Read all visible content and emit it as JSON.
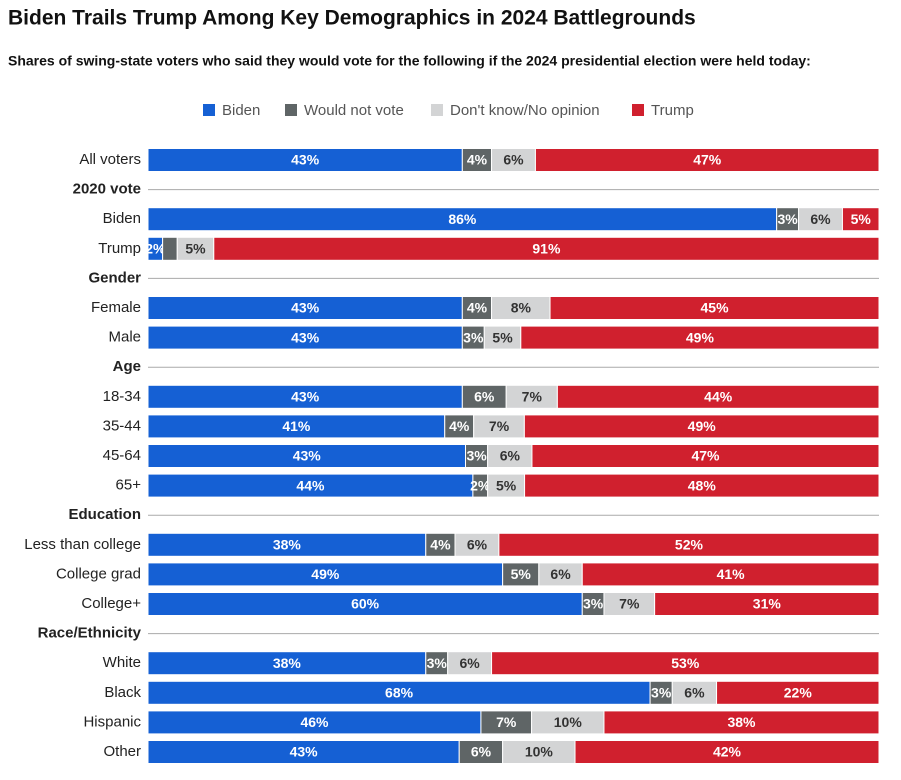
{
  "chart_data": {
    "type": "stacked-bar",
    "title": "Biden Trails Trump Among Key Demographics in 2024 Battlegrounds",
    "subtitle": "Shares of swing-state voters who said they would vote for the following if the 2024 presidential election were held today:",
    "categories": [
      "All voters",
      "2020 vote",
      "Biden",
      "Trump",
      "Gender",
      "Female",
      "Male",
      "Age",
      "18-34",
      "35-44",
      "45-64",
      "65+",
      "Education",
      "Less than college",
      "College grad",
      "College+",
      "Race/Ethnicity",
      "White",
      "Black",
      "Hispanic",
      "Other"
    ],
    "series": [
      {
        "name": "Biden",
        "color": "#1560d4",
        "values": [
          43,
          null,
          86,
          2,
          null,
          43,
          43,
          null,
          43,
          41,
          43,
          44,
          null,
          38,
          49,
          60,
          null,
          38,
          68,
          46,
          43
        ],
        "value_labels": [
          "43%",
          null,
          "86%",
          "2%",
          null,
          "43%",
          "43%",
          null,
          "43%",
          "41%",
          "43%",
          "44%",
          null,
          "38%",
          "49%",
          "60%",
          null,
          "38%",
          "68%",
          "46%",
          "43%"
        ]
      },
      {
        "name": "Would not vote",
        "color": "#5f6566",
        "values": [
          4,
          null,
          3,
          2,
          null,
          4,
          3,
          null,
          6,
          4,
          3,
          2,
          null,
          4,
          5,
          3,
          null,
          3,
          3,
          7,
          6
        ],
        "value_labels": [
          "4%",
          null,
          "3%",
          null,
          null,
          "4%",
          "3%",
          null,
          "6%",
          "4%",
          "3%",
          "2%",
          null,
          "4%",
          "5%",
          "3%",
          null,
          "3%",
          "3%",
          "7%",
          "6%"
        ]
      },
      {
        "name": "Don't know/No opinion",
        "color": "#d3d4d5",
        "values": [
          6,
          null,
          6,
          5,
          null,
          8,
          5,
          null,
          7,
          7,
          6,
          5,
          null,
          6,
          6,
          7,
          null,
          6,
          6,
          10,
          10
        ],
        "value_labels": [
          "6%",
          null,
          "6%",
          "5%",
          null,
          "8%",
          "5%",
          null,
          "7%",
          "7%",
          "6%",
          "5%",
          null,
          "6%",
          "6%",
          "7%",
          null,
          "6%",
          "6%",
          "10%",
          "10%"
        ]
      },
      {
        "name": "Trump",
        "color": "#d0202e",
        "values": [
          47,
          null,
          5,
          91,
          null,
          45,
          49,
          null,
          44,
          49,
          47,
          48,
          null,
          52,
          41,
          31,
          null,
          53,
          22,
          38,
          42
        ],
        "value_labels": [
          "47%",
          null,
          "5%",
          "91%",
          null,
          "45%",
          "49%",
          null,
          "44%",
          "49%",
          "47%",
          "48%",
          null,
          "52%",
          "41%",
          "31%",
          null,
          "53%",
          "22%",
          "38%",
          "42%"
        ]
      }
    ]
  }
}
